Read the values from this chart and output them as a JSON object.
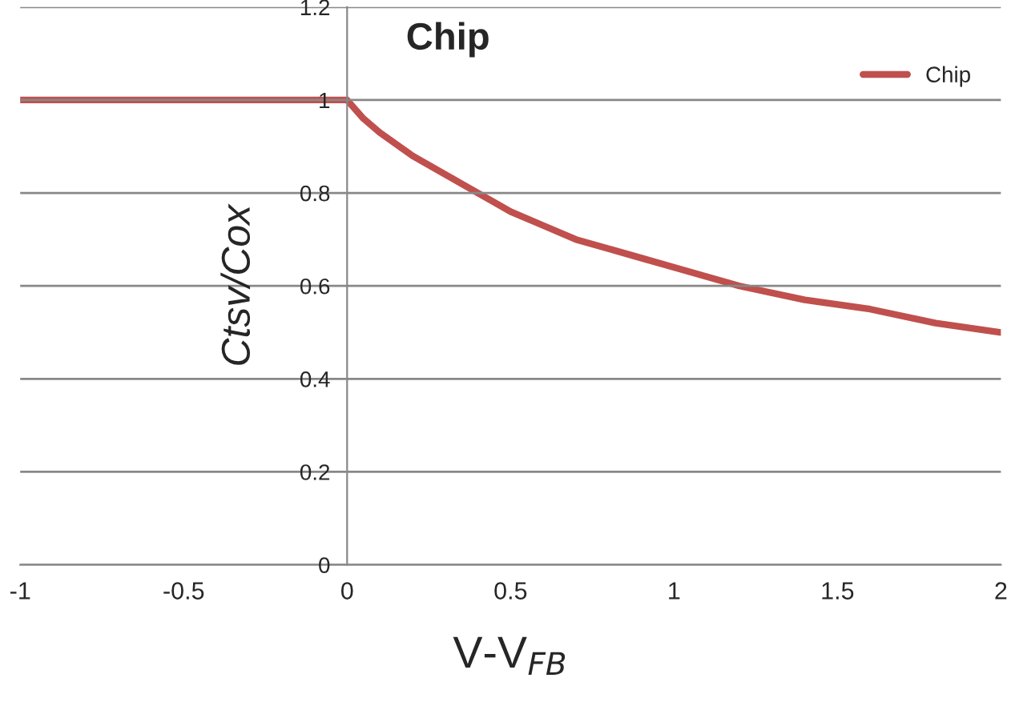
{
  "chart_data": {
    "type": "line",
    "title": "Chip",
    "xlabel": "V-V$_{FB}$",
    "ylabel": "Ctsv/Cox",
    "x": [
      -1,
      -0.5,
      0,
      0.05,
      0.1,
      0.2,
      0.3,
      0.4,
      0.5,
      0.6,
      0.7,
      0.8,
      0.9,
      1,
      1.2,
      1.4,
      1.6,
      1.8,
      2
    ],
    "series": [
      {
        "name": "Chip",
        "color": "#c0504d",
        "values": [
          1,
          1,
          1,
          0.96,
          0.93,
          0.88,
          0.84,
          0.8,
          0.76,
          0.73,
          0.7,
          0.68,
          0.66,
          0.64,
          0.6,
          0.57,
          0.55,
          0.52,
          0.5
        ]
      }
    ],
    "xlim": [
      -1,
      2
    ],
    "xticks": [
      -1,
      -0.5,
      0,
      0.5,
      1,
      1.5,
      2
    ],
    "ylim": [
      0,
      1.2
    ],
    "yticks": [
      0,
      0.2,
      0.4,
      0.6,
      0.8,
      1,
      1.2
    ],
    "grid": "y",
    "legend": "top right",
    "marker": "none",
    "line_style": "solid"
  }
}
